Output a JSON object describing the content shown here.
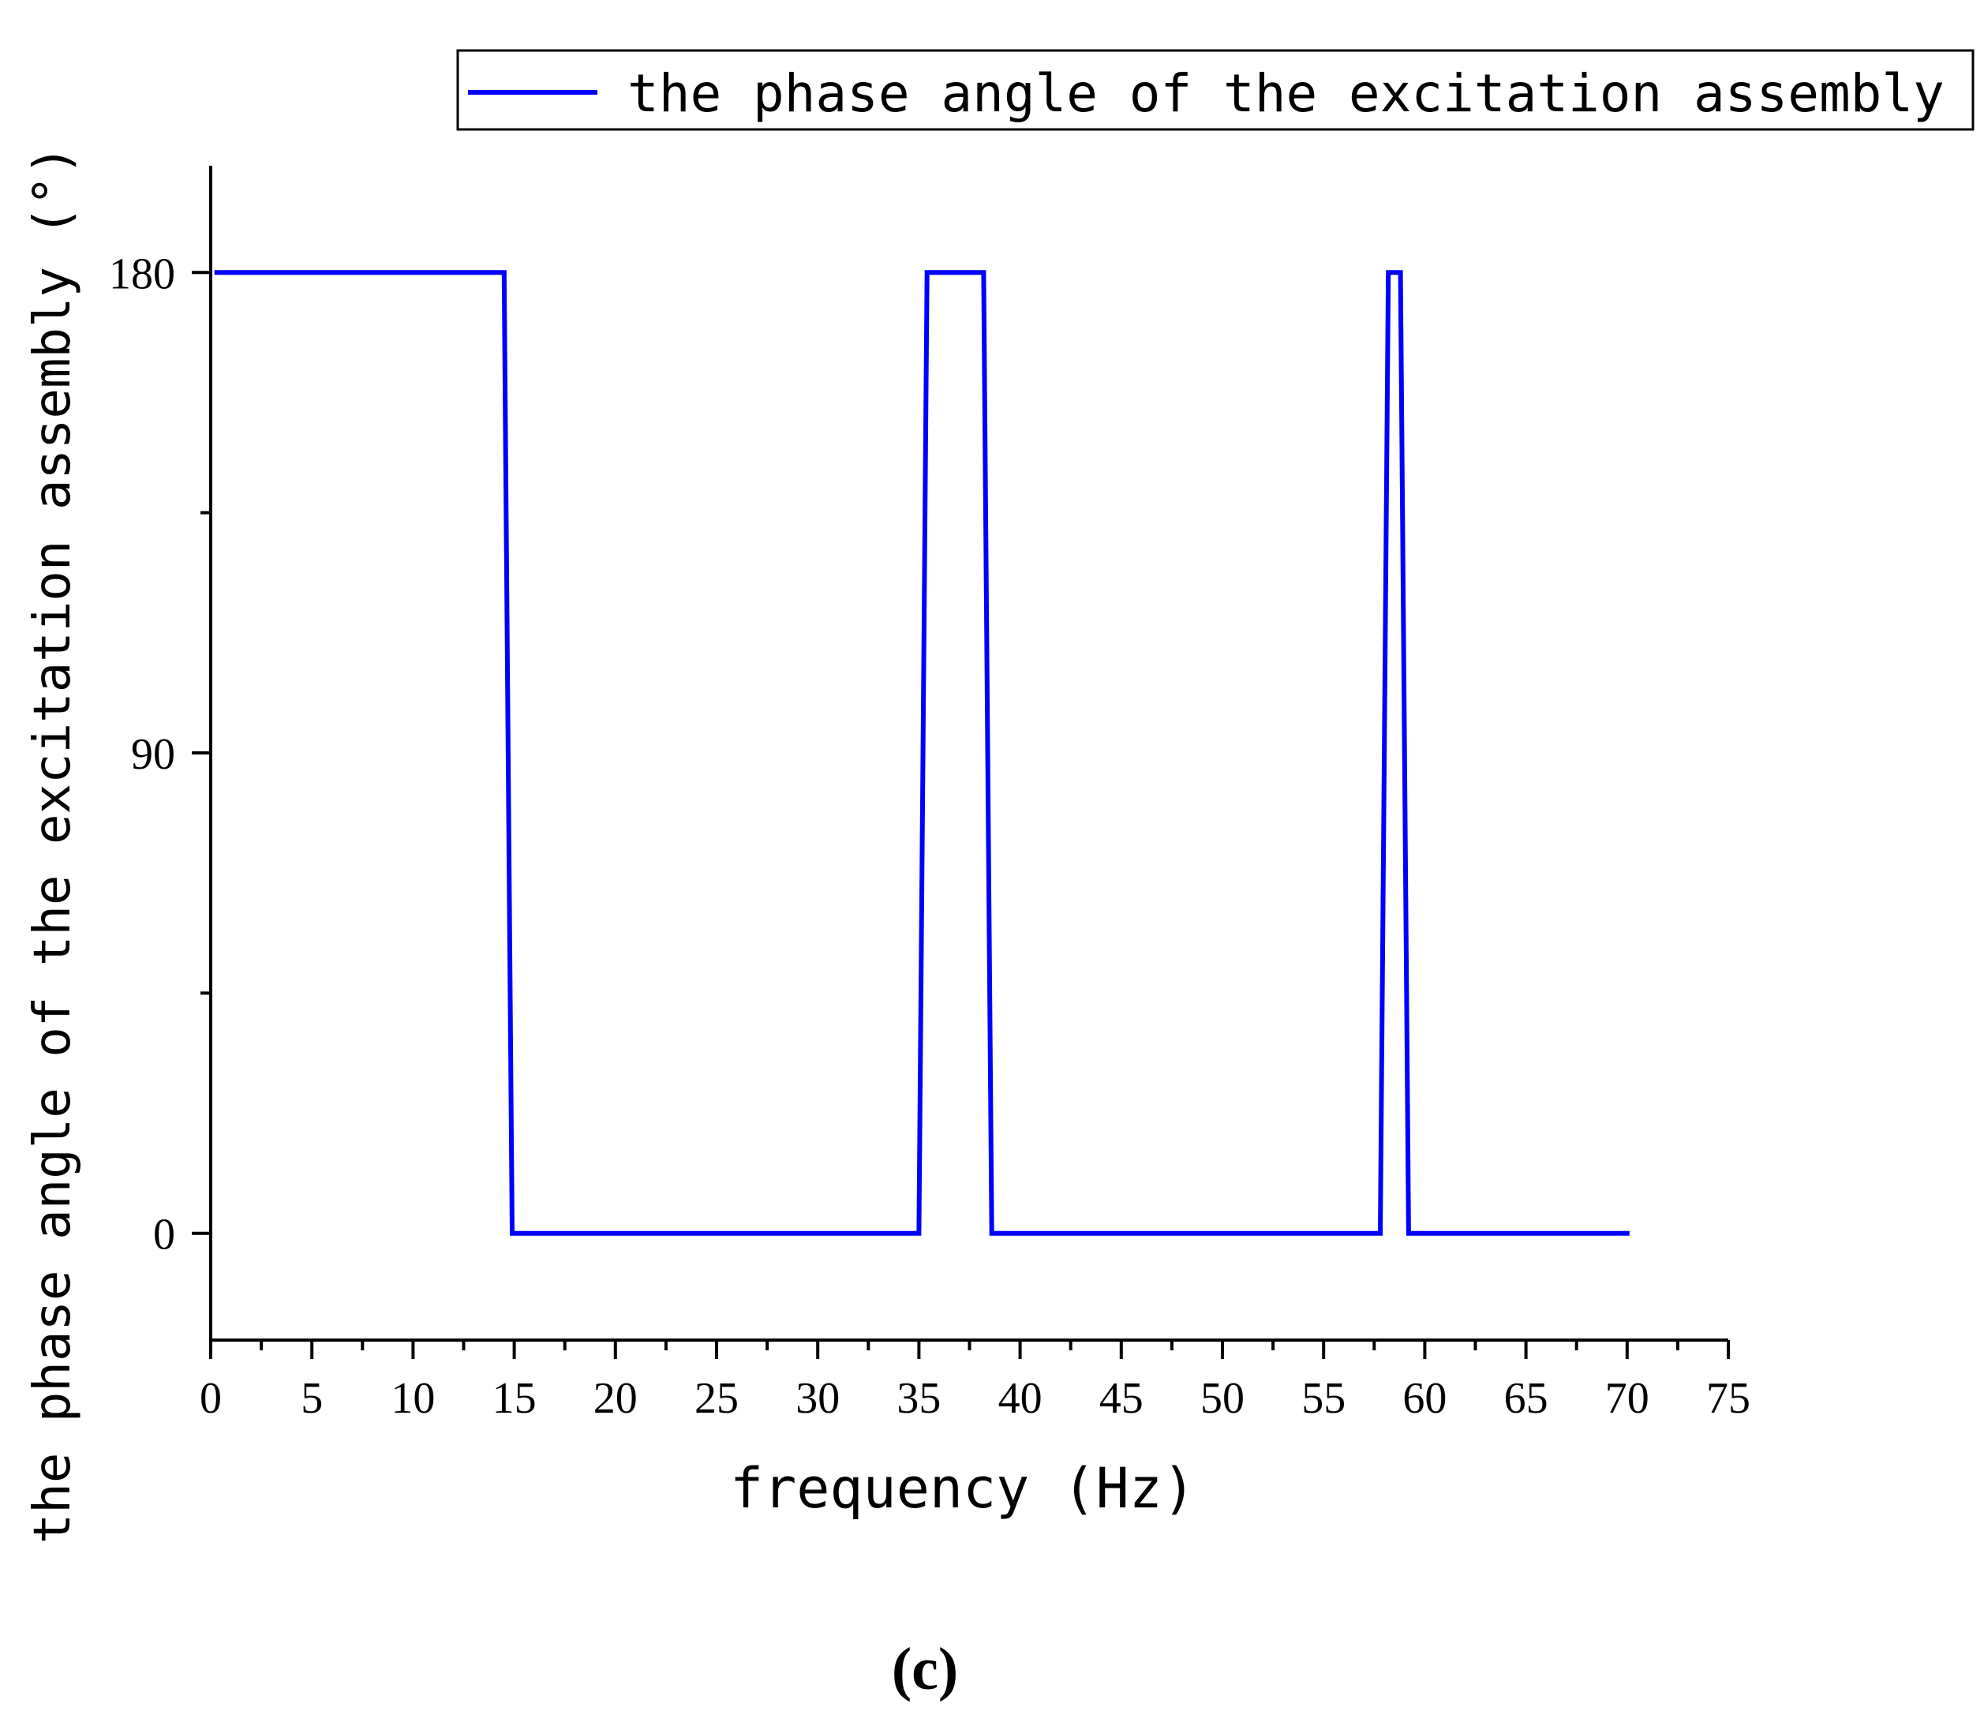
{
  "chart_data": {
    "type": "line",
    "ylabel": "the phase angle of the excitation assembly (°)",
    "xlabel": "frequency (Hz)",
    "panel_label": "(c)",
    "xlim": [
      0,
      75
    ],
    "ylim": [
      -20,
      200
    ],
    "xticks": [
      0,
      5,
      10,
      15,
      20,
      25,
      30,
      35,
      40,
      45,
      50,
      55,
      60,
      65,
      70,
      75
    ],
    "xtick_labels": [
      "0",
      "5",
      "10",
      "15",
      "20",
      "25",
      "30",
      "35",
      "40",
      "45",
      "50",
      "55",
      "60",
      "65",
      "70",
      "75"
    ],
    "yticks": [
      0,
      90,
      180
    ],
    "ytick_labels": [
      "0",
      "90",
      "180"
    ],
    "y_minor_ticks": [
      45,
      135
    ],
    "x_minor_step": 2.5,
    "grid": false,
    "legend_position": "top-right",
    "series": [
      {
        "name": "the phase angle of the excitation assembly",
        "color": "#0000ff",
        "x": [
          0.3,
          14.5,
          14.9,
          35.0,
          35.4,
          38.2,
          38.6,
          57.8,
          58.2,
          58.8,
          59.2,
          70.0
        ],
        "y": [
          180,
          180,
          0,
          0,
          180,
          180,
          0,
          0,
          180,
          180,
          0,
          0
        ]
      }
    ]
  }
}
